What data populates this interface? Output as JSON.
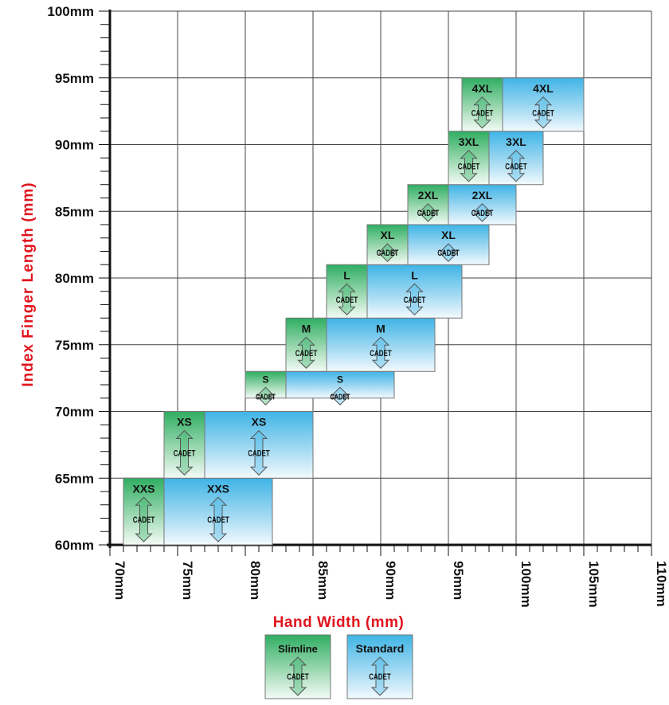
{
  "chart_data": {
    "type": "range-boxes",
    "xlabel": "Hand Width (mm)",
    "ylabel": "Index Finger Length (mm)",
    "xlim": [
      70,
      110
    ],
    "ylim": [
      60,
      100
    ],
    "x_ticks": [
      70,
      75,
      80,
      85,
      90,
      95,
      100,
      105,
      110
    ],
    "y_ticks": [
      60,
      65,
      70,
      75,
      80,
      85,
      90,
      95,
      100
    ],
    "x_tick_labels": [
      "70mm",
      "75mm",
      "80mm",
      "85mm",
      "90mm",
      "95mm",
      "100mm",
      "105mm",
      "110mm"
    ],
    "y_tick_labels": [
      "60mm",
      "65mm",
      "70mm",
      "75mm",
      "80mm",
      "85mm",
      "90mm",
      "95mm",
      "100mm"
    ],
    "grid": true,
    "series": [
      {
        "name": "Slimline",
        "color": "#2fae62",
        "boxes": [
          {
            "size": "XXS",
            "x0": 71,
            "x1": 74,
            "y0": 60,
            "y1": 65
          },
          {
            "size": "XS",
            "x0": 74,
            "x1": 77,
            "y0": 65,
            "y1": 70
          },
          {
            "size": "S",
            "x0": 80,
            "x1": 83,
            "y0": 71,
            "y1": 73
          },
          {
            "size": "M",
            "x0": 83,
            "x1": 86,
            "y0": 73,
            "y1": 77
          },
          {
            "size": "L",
            "x0": 86,
            "x1": 89,
            "y0": 77,
            "y1": 81
          },
          {
            "size": "XL",
            "x0": 89,
            "x1": 92,
            "y0": 81,
            "y1": 84
          },
          {
            "size": "2XL",
            "x0": 92,
            "x1": 95,
            "y0": 84,
            "y1": 87
          },
          {
            "size": "3XL",
            "x0": 95,
            "x1": 98,
            "y0": 87,
            "y1": 91
          },
          {
            "size": "4XL",
            "x0": 96,
            "x1": 99,
            "y0": 91,
            "y1": 95
          }
        ]
      },
      {
        "name": "Standard",
        "color": "#3fb4e6",
        "boxes": [
          {
            "size": "XXS",
            "x0": 74,
            "x1": 82,
            "y0": 60,
            "y1": 65
          },
          {
            "size": "XS",
            "x0": 77,
            "x1": 85,
            "y0": 65,
            "y1": 70
          },
          {
            "size": "S",
            "x0": 83,
            "x1": 91,
            "y0": 71,
            "y1": 73
          },
          {
            "size": "M",
            "x0": 86,
            "x1": 94,
            "y0": 73,
            "y1": 77
          },
          {
            "size": "L",
            "x0": 89,
            "x1": 96,
            "y0": 77,
            "y1": 81
          },
          {
            "size": "XL",
            "x0": 92,
            "x1": 98,
            "y0": 81,
            "y1": 84
          },
          {
            "size": "2XL",
            "x0": 95,
            "x1": 100,
            "y0": 84,
            "y1": 87
          },
          {
            "size": "3XL",
            "x0": 98,
            "x1": 102,
            "y0": 87,
            "y1": 91
          },
          {
            "size": "4XL",
            "x0": 99,
            "x1": 105,
            "y0": 91,
            "y1": 95
          }
        ]
      }
    ],
    "box_caption": "CADET",
    "legend": {
      "position": "bottom-center",
      "items": [
        {
          "name": "Slimline",
          "caption": "CADET"
        },
        {
          "name": "Standard",
          "caption": "CADET"
        }
      ]
    }
  }
}
